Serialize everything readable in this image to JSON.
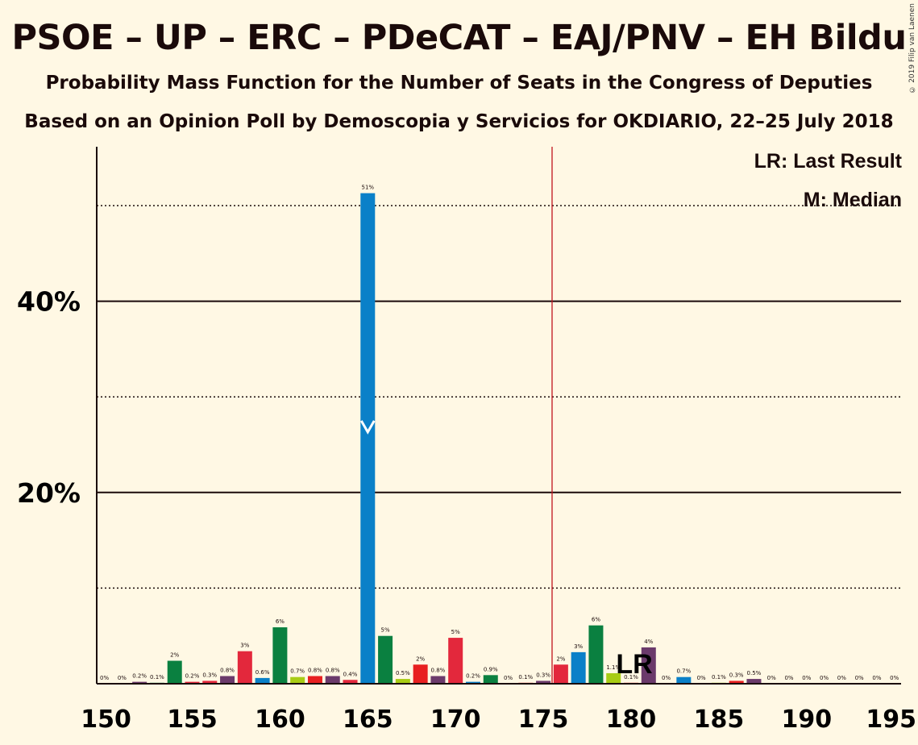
{
  "header": {
    "title": "PSOE – UP – ERC – PDeCAT – EAJ/PNV – EH Bildu",
    "subtitle": "Probability Mass Function for the Number of Seats in the Congress of Deputies",
    "source": "Based on an Opinion Poll by Demoscopia y Servicios for OKDIARIO, 22–25 July 2018",
    "copyright": "© 2019 Filip van Laenen"
  },
  "legend": {
    "last_result": "LR: Last Result",
    "median": "M: Median"
  },
  "chart_data": {
    "type": "bar",
    "x": [
      150,
      151,
      152,
      153,
      154,
      155,
      156,
      157,
      158,
      159,
      160,
      161,
      162,
      163,
      164,
      165,
      166,
      167,
      168,
      169,
      170,
      171,
      172,
      173,
      174,
      175,
      176,
      177,
      178,
      179,
      180,
      181,
      182,
      183,
      184,
      185,
      186,
      187,
      188,
      189,
      190,
      191,
      192,
      193,
      194,
      195
    ],
    "values": [
      0,
      0,
      0.2,
      0.1,
      2.4,
      0.2,
      0.3,
      0.8,
      3.4,
      0.6,
      5.9,
      0.7,
      0.8,
      0.8,
      0.4,
      51.3,
      5.0,
      0.5,
      2.0,
      0.8,
      4.8,
      0.2,
      0.9,
      0,
      0.1,
      0.3,
      2.0,
      3.3,
      6.1,
      1.1,
      0.1,
      3.8,
      0,
      0.7,
      0,
      0.1,
      0.3,
      0.5,
      0,
      0,
      0,
      0,
      0,
      0,
      0,
      0
    ],
    "labels": [
      "0%",
      "0%",
      "0.2%",
      "0.1%",
      "2%",
      "0.2%",
      "0.3%",
      "0.8%",
      "3%",
      "0.6%",
      "6%",
      "0.7%",
      "0.8%",
      "0.8%",
      "0.4%",
      "51%",
      "5%",
      "0.5%",
      "2%",
      "0.8%",
      "5%",
      "0.2%",
      "0.9%",
      "0%",
      "0.1%",
      "0.3%",
      "2%",
      "3%",
      "6%",
      "1.1%",
      "0.1%",
      "4%",
      "0%",
      "0.7%",
      "0%",
      "0.1%",
      "0.3%",
      "0.5%",
      "0%",
      "0%",
      "0%",
      "0%",
      "0%",
      "0%",
      "0%",
      "0%"
    ],
    "colors": [
      "#0a8040",
      "#0a8040",
      "#6b3a6b",
      "#0a8040",
      "#0a8040",
      "#e3283c",
      "#e3283c",
      "#6b3a6b",
      "#e3283c",
      "#0a80c8",
      "#0a8040",
      "#a8cc14",
      "#e82020",
      "#6b3a6b",
      "#e3283c",
      "#0a80c8",
      "#0a8040",
      "#a8cc14",
      "#e82020",
      "#6b3a6b",
      "#e3283c",
      "#0a80c8",
      "#0a8040",
      "#a8cc14",
      "#e82020",
      "#6b3a6b",
      "#e3283c",
      "#0a80c8",
      "#0a8040",
      "#a8cc14",
      "#e82020",
      "#6b3a6b",
      "#e3283c",
      "#0a80c8",
      "#0a8040",
      "#a8cc14",
      "#e82020",
      "#6b3a6b",
      "#e3283c",
      "#0a80c8",
      "#0a8040",
      "#a8cc14",
      "#e82020",
      "#6b3a6b",
      "#e3283c",
      "#0a80c8"
    ],
    "xticks": [
      150,
      155,
      160,
      165,
      170,
      175,
      180,
      185,
      190,
      195
    ],
    "xtick_labels": [
      "150",
      "155",
      "160",
      "165",
      "170",
      "175",
      "180",
      "185",
      "190",
      "195"
    ],
    "yticks_major": [
      20,
      40
    ],
    "ytick_labels": [
      "20%",
      "40%"
    ],
    "yticks_minor": [
      10,
      30,
      50
    ],
    "ylim": [
      0,
      56
    ],
    "xlim": [
      149.5,
      195.5
    ],
    "last_result": 176,
    "last_result_marker": "LR",
    "last_result_marker_x": 180,
    "median": 165,
    "median_marker": "M",
    "colors_theme": {
      "background": "#fff8e4",
      "lr_line": "#c0141e",
      "median_marker": "#ffffff"
    }
  }
}
